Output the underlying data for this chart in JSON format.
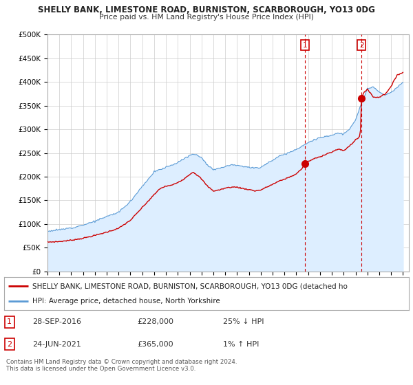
{
  "title1": "SHELLY BANK, LIMESTONE ROAD, BURNISTON, SCARBOROUGH, YO13 0DG",
  "title2": "Price paid vs. HM Land Registry's House Price Index (HPI)",
  "ylabel_ticks": [
    "£0",
    "£50K",
    "£100K",
    "£150K",
    "£200K",
    "£250K",
    "£300K",
    "£350K",
    "£400K",
    "£450K",
    "£500K"
  ],
  "ytick_values": [
    0,
    50000,
    100000,
    150000,
    200000,
    250000,
    300000,
    350000,
    400000,
    450000,
    500000
  ],
  "xlim_start": 1995.5,
  "xlim_end": 2025.5,
  "ylim": [
    0,
    500000
  ],
  "hpi_color": "#5b9bd5",
  "hpi_fill_color": "#ddeeff",
  "price_color": "#cc0000",
  "point1_x": 2016.75,
  "point1_y": 228000,
  "point2_x": 2021.5,
  "point2_y": 365000,
  "vline1_x": 2016.75,
  "vline2_x": 2021.5,
  "legend_label1": "SHELLY BANK, LIMESTONE ROAD, BURNISTON, SCARBOROUGH, YO13 0DG (detached ho",
  "legend_label2": "HPI: Average price, detached house, North Yorkshire",
  "table_row1": [
    "1",
    "28-SEP-2016",
    "£228,000",
    "25% ↓ HPI"
  ],
  "table_row2": [
    "2",
    "24-JUN-2021",
    "£365,000",
    "1% ↑ HPI"
  ],
  "footer": "Contains HM Land Registry data © Crown copyright and database right 2024.\nThis data is licensed under the Open Government Licence v3.0.",
  "bg_color": "#ffffff",
  "grid_color": "#cccccc"
}
